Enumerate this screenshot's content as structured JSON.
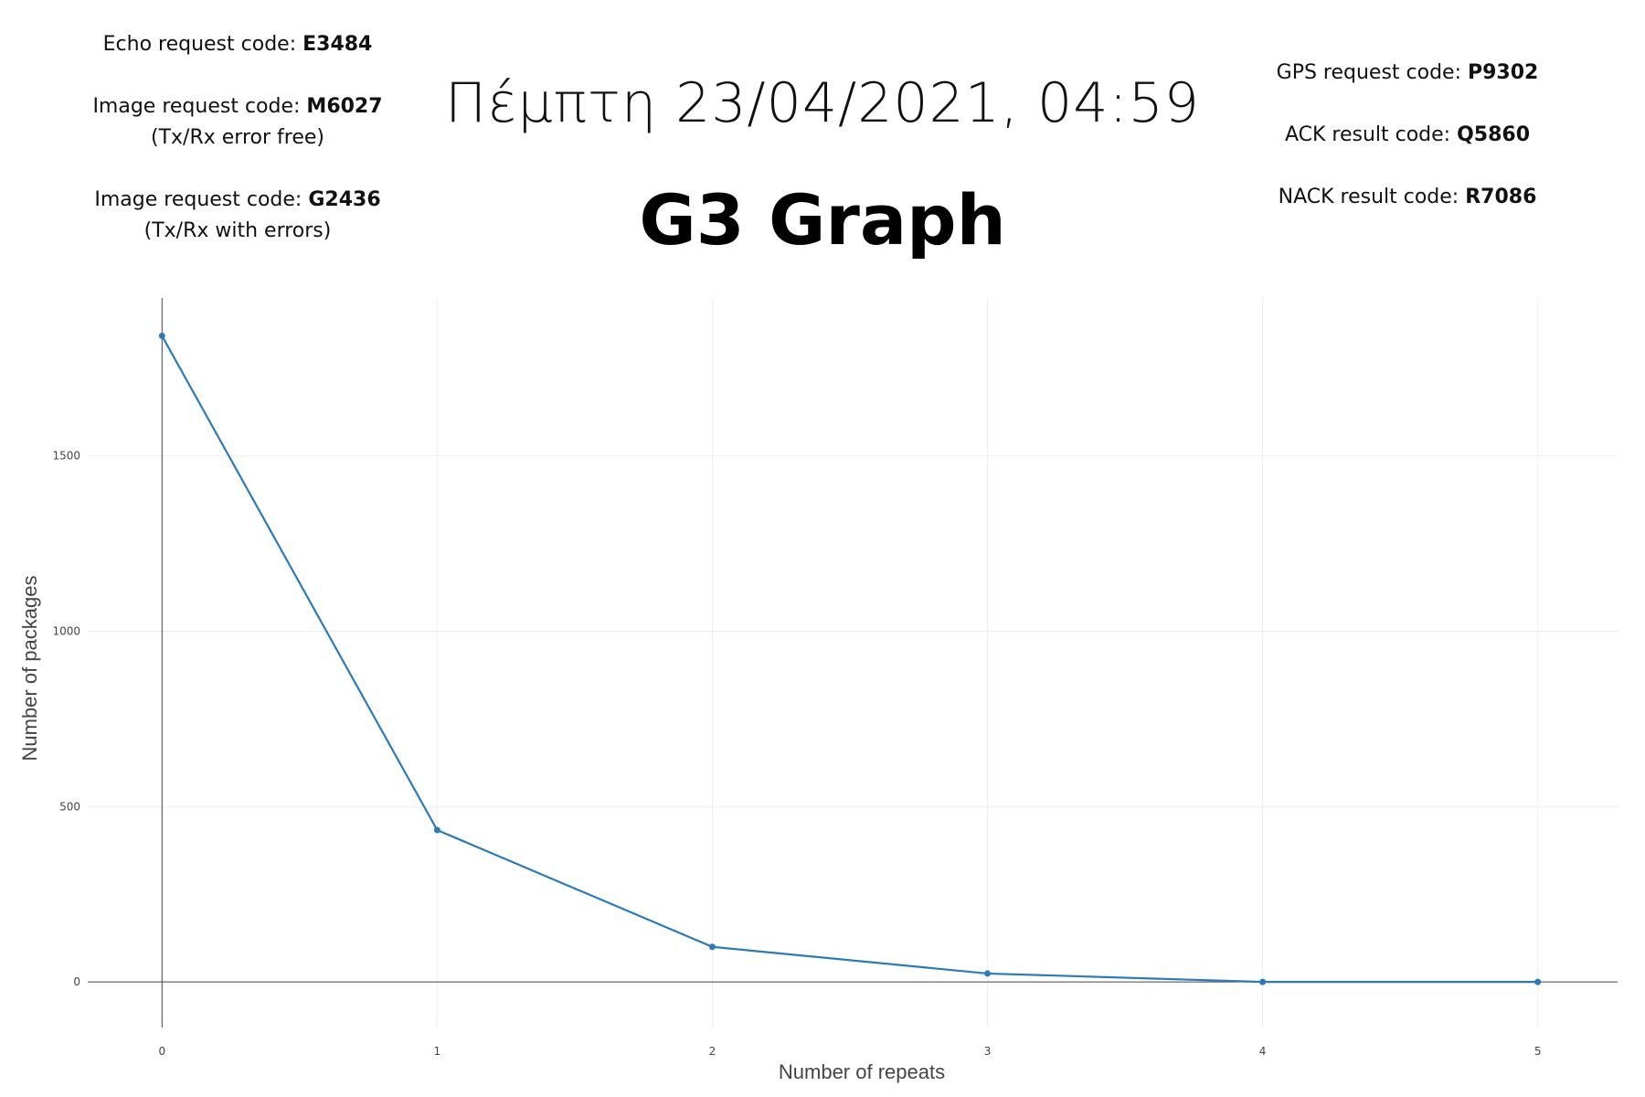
{
  "header": {
    "left_codes": [
      {
        "label": "Echo request code: ",
        "code": "E3484",
        "note": ""
      },
      {
        "label": "Image request code: ",
        "code": "M6027",
        "note": "(Tx/Rx error free)"
      },
      {
        "label": "Image request code: ",
        "code": "G2436",
        "note": "(Tx/Rx with errors)"
      }
    ],
    "right_codes": [
      {
        "label": "GPS request code: ",
        "code": "P9302"
      },
      {
        "label": "ACK result code: ",
        "code": "Q5860"
      },
      {
        "label": "NACK result code: ",
        "code": "R7086"
      }
    ],
    "date": "Πέμπτη 23/04/2021, 04:59",
    "title": "G3 Graph"
  },
  "chart_data": {
    "type": "line",
    "x": [
      0,
      1,
      2,
      3,
      4,
      5
    ],
    "y": [
      1842,
      433,
      100,
      24,
      0,
      0
    ],
    "xlabel": "Number of repeats",
    "ylabel": "Number of packages",
    "x_ticks": [
      "0",
      "1",
      "2",
      "3",
      "4",
      "5"
    ],
    "y_ticks": [
      "0",
      "500",
      "1000",
      "1500"
    ],
    "xlim": [
      -0.27,
      5.29
    ],
    "ylim": [
      -130,
      1950
    ],
    "grid": true,
    "line_color": "#2b7bba",
    "marker": true
  }
}
